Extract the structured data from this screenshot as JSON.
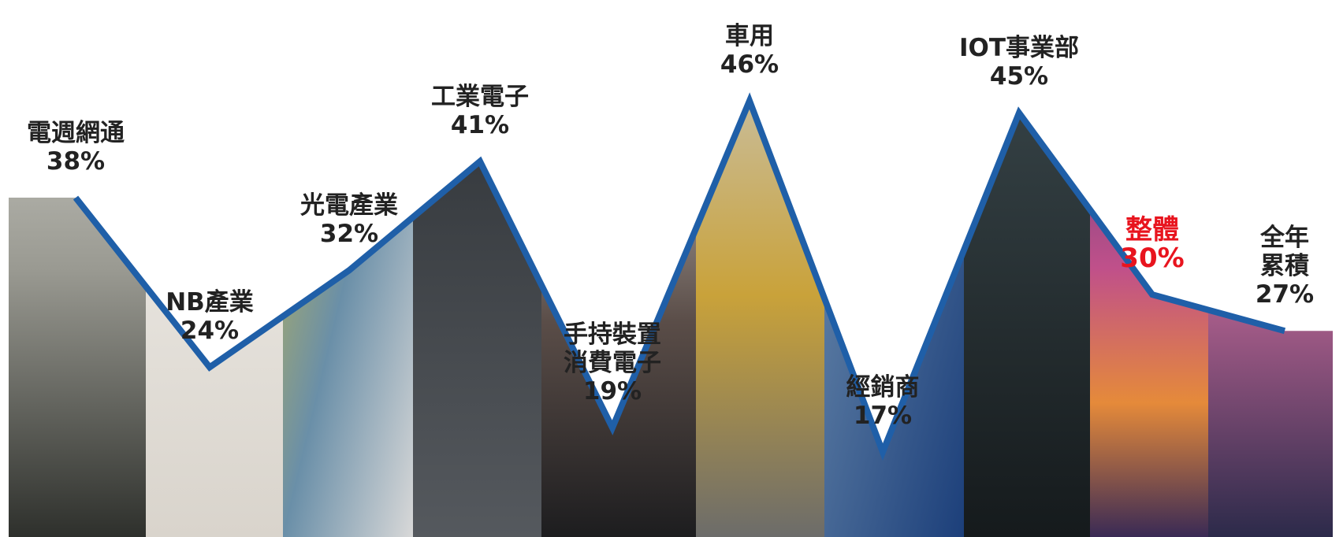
{
  "chart_data": {
    "type": "line",
    "categories": [
      "電週網通",
      "NB產業",
      "光電產業",
      "工業電子",
      "手持裝置\n消費電子",
      "車用",
      "經銷商",
      "IOT事業部",
      "整體",
      "全年累積"
    ],
    "values": [
      38,
      24,
      32,
      41,
      19,
      46,
      17,
      45,
      30,
      27
    ],
    "value_labels": [
      "38%",
      "24%",
      "32%",
      "41%",
      "19%",
      "46%",
      "17%",
      "45%",
      "30%",
      "27%"
    ],
    "color": "#1f5fa8",
    "highlight": {
      "index": 8,
      "color": "#e8141e"
    }
  }
}
